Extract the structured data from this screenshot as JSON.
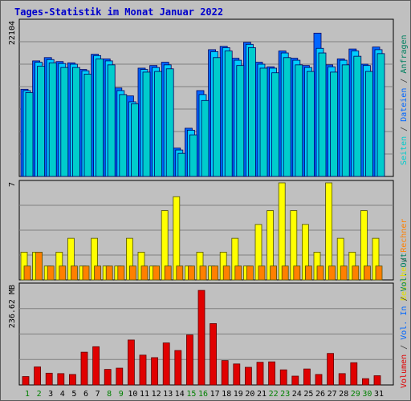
{
  "title": "Tages-Statistik im Monat Januar 2022",
  "colors": {
    "background": "#c0c0c0",
    "plot_bg": "#c0c0c0",
    "grid": "#808080",
    "title": "#0000cc",
    "anfragen": "#0066ff",
    "dateien": "#00ccff",
    "seiten": "#00cccc",
    "anfragen_dark": "#1a3aa8",
    "besuche": "#ffff00",
    "rechner": "#ff8000",
    "volumen": "#e00000",
    "weekend_label": "#008000",
    "weekday_label": "#000000"
  },
  "legend_top": [
    {
      "text": "Seiten",
      "color": "#00cccc"
    },
    {
      "text": "/",
      "color": "#404040"
    },
    {
      "text": "Dateien",
      "color": "#0066ff"
    },
    {
      "text": "/",
      "color": "#404040"
    },
    {
      "text": "Anfragen",
      "color": "#008060"
    }
  ],
  "legend_mid": [
    {
      "text": "Besuche",
      "color": "#e0e000"
    },
    {
      "text": "/",
      "color": "#404040"
    },
    {
      "text": "Rechner",
      "color": "#ff8000"
    }
  ],
  "legend_bot": [
    {
      "text": "Volumen",
      "color": "#e00000"
    },
    {
      "text": "/",
      "color": "#404040"
    },
    {
      "text": "Vol. In",
      "color": "#0066ff"
    },
    {
      "text": "/",
      "color": "#404040"
    },
    {
      "text": "Vol. Out",
      "color": "#008060"
    }
  ],
  "chart_data": [
    {
      "type": "bar",
      "panel": "hits",
      "ylabel": "22104",
      "ylim": [
        0,
        22104
      ],
      "x": [
        1,
        2,
        3,
        4,
        5,
        6,
        7,
        8,
        9,
        10,
        11,
        12,
        13,
        14,
        15,
        16,
        17,
        18,
        19,
        20,
        21,
        22,
        23,
        24,
        25,
        26,
        27,
        28,
        29,
        30,
        31
      ],
      "series": [
        {
          "name": "Anfragen",
          "values": [
            13200,
            17500,
            18000,
            17400,
            17200,
            16200,
            18500,
            17800,
            13400,
            12200,
            16400,
            16800,
            17300,
            4300,
            7300,
            13000,
            19200,
            19700,
            17900,
            20300,
            17300,
            16600,
            19000,
            17900,
            16800,
            21700,
            16900,
            17800,
            19300,
            17000,
            19600
          ]
        },
        {
          "name": "Dateien",
          "values": [
            13000,
            17300,
            17700,
            17100,
            17000,
            16000,
            18300,
            17500,
            13000,
            11300,
            16200,
            16500,
            16900,
            4000,
            7000,
            12400,
            18900,
            19500,
            17600,
            20000,
            17000,
            16400,
            18700,
            17600,
            16500,
            19400,
            16600,
            17600,
            19000,
            16800,
            19200
          ]
        },
        {
          "name": "Seiten",
          "values": [
            12700,
            16700,
            17200,
            16500,
            16500,
            15500,
            17800,
            16900,
            12400,
            11000,
            15800,
            15900,
            16300,
            3500,
            6300,
            11500,
            18000,
            19000,
            16800,
            19500,
            16400,
            15700,
            18000,
            16900,
            15900,
            18700,
            15800,
            16900,
            18200,
            15900,
            18600
          ]
        }
      ],
      "weekend_days": [
        1,
        2,
        8,
        9,
        15,
        16,
        22,
        23,
        29,
        30
      ]
    },
    {
      "type": "bar",
      "panel": "visits",
      "ylabel": "7",
      "ylim": [
        0,
        7
      ],
      "x": [
        1,
        2,
        3,
        4,
        5,
        6,
        7,
        8,
        9,
        10,
        11,
        12,
        13,
        14,
        15,
        16,
        17,
        18,
        19,
        20,
        21,
        22,
        23,
        24,
        25,
        26,
        27,
        28,
        29,
        30,
        31
      ],
      "series": [
        {
          "name": "Besuche",
          "values": [
            2,
            2,
            1,
            2,
            3,
            1,
            3,
            1,
            1,
            3,
            2,
            1,
            5,
            6,
            1,
            2,
            1,
            2,
            3,
            1,
            4,
            5,
            7,
            5,
            4,
            2,
            7,
            3,
            2,
            5,
            3
          ]
        },
        {
          "name": "Rechner",
          "values": [
            1,
            2,
            1,
            1,
            1,
            1,
            1,
            1,
            1,
            1,
            1,
            1,
            1,
            1,
            1,
            1,
            1,
            1,
            1,
            1,
            1,
            1,
            1,
            1,
            1,
            1,
            1,
            1,
            1,
            1,
            1
          ]
        }
      ]
    },
    {
      "type": "bar",
      "panel": "volume",
      "ylabel": "236.62 MB",
      "ylim": [
        0,
        236.62
      ],
      "x": [
        1,
        2,
        3,
        4,
        5,
        6,
        7,
        8,
        9,
        10,
        11,
        12,
        13,
        14,
        15,
        16,
        17,
        18,
        19,
        20,
        21,
        22,
        23,
        24,
        25,
        26,
        27,
        28,
        29,
        30,
        31
      ],
      "series": [
        {
          "name": "Volumen",
          "values": [
            20,
            43,
            28,
            27,
            25,
            78,
            91,
            37,
            40,
            107,
            71,
            65,
            100,
            82,
            119,
            225,
            146,
            58,
            50,
            42,
            54,
            55,
            36,
            21,
            38,
            25,
            75,
            27,
            53,
            15,
            22
          ]
        }
      ]
    }
  ]
}
